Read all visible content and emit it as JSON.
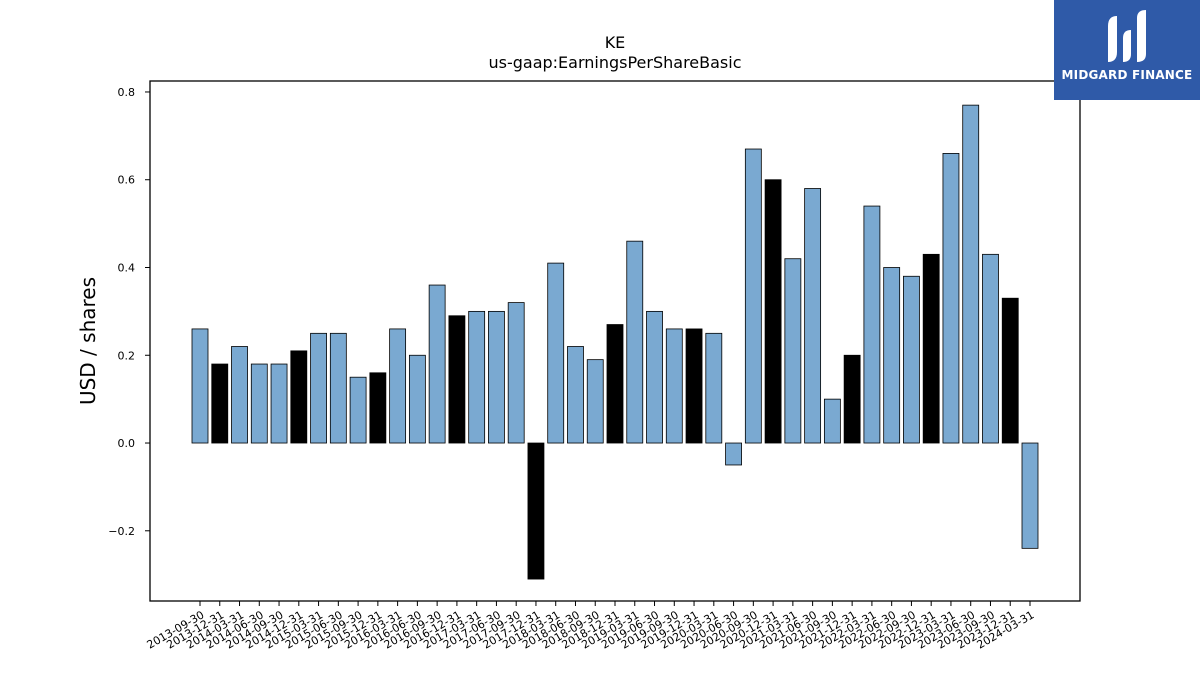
{
  "chart_data": {
    "type": "bar",
    "title": "KE",
    "subtitle": "us-gaap:EarningsPerShareBasic",
    "xlabel": "",
    "ylabel": "USD / shares",
    "ylim": [
      -0.36,
      0.825
    ],
    "yticks": [
      -0.2,
      0.0,
      0.2,
      0.4,
      0.6,
      0.8
    ],
    "ytick_labels": [
      "−0.2",
      "0.0",
      "0.2",
      "0.4",
      "0.6",
      "0.8"
    ],
    "categories": [
      "2013-09-30",
      "2013-12-31",
      "2014-03-31",
      "2014-06-30",
      "2014-09-30",
      "2014-12-31",
      "2015-03-31",
      "2015-06-30",
      "2015-09-30",
      "2015-12-31",
      "2016-03-31",
      "2016-06-30",
      "2016-09-30",
      "2016-12-31",
      "2017-03-31",
      "2017-06-30",
      "2017-09-30",
      "2017-12-31",
      "2018-03-31",
      "2018-06-30",
      "2018-09-30",
      "2018-12-31",
      "2019-03-31",
      "2019-06-30",
      "2019-09-30",
      "2019-12-31",
      "2020-03-31",
      "2020-06-30",
      "2020-09-30",
      "2020-12-31",
      "2021-03-31",
      "2021-06-30",
      "2021-09-30",
      "2021-12-31",
      "2022-03-31",
      "2022-06-30",
      "2022-09-30",
      "2022-12-31",
      "2023-03-31",
      "2023-06-30",
      "2023-09-30",
      "2023-12-31",
      "2024-03-31"
    ],
    "values": [
      0.26,
      0.18,
      0.22,
      0.18,
      0.18,
      0.21,
      0.25,
      0.25,
      0.15,
      0.16,
      0.26,
      0.2,
      0.36,
      0.29,
      0.3,
      0.3,
      0.32,
      -0.31,
      0.41,
      0.22,
      0.19,
      0.27,
      0.46,
      0.3,
      0.26,
      0.26,
      0.25,
      -0.05,
      0.67,
      0.6,
      0.42,
      0.58,
      0.1,
      0.2,
      0.54,
      0.4,
      0.38,
      0.43,
      0.66,
      0.77,
      0.43,
      0.33,
      -0.24
    ],
    "highlight": [
      false,
      true,
      false,
      false,
      false,
      true,
      false,
      false,
      false,
      true,
      false,
      false,
      false,
      true,
      false,
      false,
      false,
      true,
      false,
      false,
      false,
      true,
      false,
      false,
      false,
      true,
      false,
      false,
      false,
      true,
      false,
      false,
      false,
      true,
      false,
      false,
      false,
      true,
      false,
      false,
      false,
      true,
      false
    ],
    "bar_color": "#7aa9d1",
    "highlight_color": "#000000",
    "grid": false,
    "legend": "none"
  },
  "logo": {
    "text": "MIDGARD FINANCE",
    "background": "#2f5aa8"
  }
}
